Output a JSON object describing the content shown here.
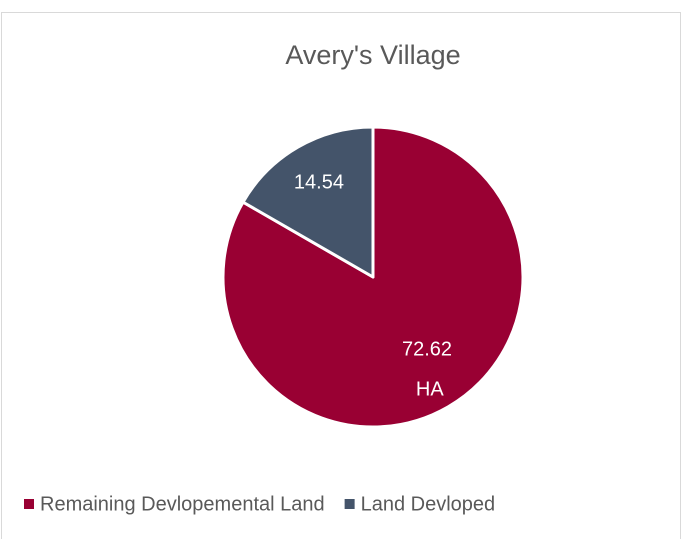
{
  "chart_data": {
    "type": "pie",
    "title": "Avery's Village",
    "categories": [
      "Remaining Devlopemental Land",
      "Land Devloped"
    ],
    "values": [
      72.62,
      14.54
    ],
    "value_labels": [
      "72.62 HA",
      "14.54"
    ],
    "colors": [
      "#990033",
      "#44546a"
    ],
    "legend": "bottom"
  }
}
